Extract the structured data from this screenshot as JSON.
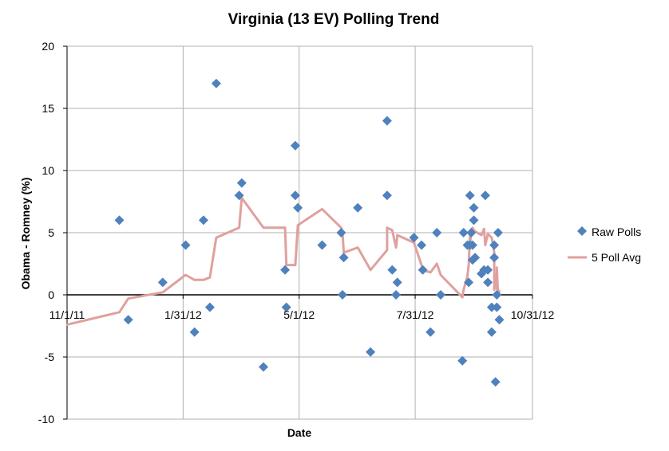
{
  "chart_data": {
    "type": "scatter",
    "title": "Virginia (13 EV) Polling Trend",
    "xlabel": "Date",
    "ylabel": "Obama - Romney (%)",
    "x_ticks": [
      "11/1/11",
      "1/31/12",
      "5/1/12",
      "7/31/12",
      "10/31/12"
    ],
    "xlim": [
      "2011-11-01",
      "2012-10-31"
    ],
    "y_ticks": [
      "-10",
      "-5",
      "0",
      "5",
      "10",
      "15",
      "20"
    ],
    "ylim": [
      -10,
      20
    ],
    "grid": true,
    "legend_position": "right",
    "colors": {
      "raw": "#4f81bd",
      "avg": "#e0a09e",
      "grid": "#b0b0b0",
      "axis": "#000000"
    },
    "series": [
      {
        "name": "Raw Polls",
        "type": "scatter",
        "points": [
          [
            "2011-12-12",
            6
          ],
          [
            "2011-12-19",
            -2
          ],
          [
            "2012-01-15",
            1
          ],
          [
            "2012-02-02",
            4
          ],
          [
            "2012-02-09",
            -3
          ],
          [
            "2012-02-16",
            6
          ],
          [
            "2012-02-21",
            -1
          ],
          [
            "2012-02-26",
            17
          ],
          [
            "2012-03-15",
            8
          ],
          [
            "2012-03-17",
            9
          ],
          [
            "2012-04-03",
            -5.8
          ],
          [
            "2012-04-20",
            2
          ],
          [
            "2012-04-21",
            -1
          ],
          [
            "2012-04-28",
            12
          ],
          [
            "2012-04-28",
            8
          ],
          [
            "2012-04-30",
            7
          ],
          [
            "2012-05-19",
            4
          ],
          [
            "2012-06-03",
            5
          ],
          [
            "2012-06-04",
            0
          ],
          [
            "2012-06-05",
            3
          ],
          [
            "2012-06-16",
            7
          ],
          [
            "2012-06-26",
            -4.6
          ],
          [
            "2012-07-09",
            14
          ],
          [
            "2012-07-09",
            8
          ],
          [
            "2012-07-13",
            2
          ],
          [
            "2012-07-16",
            0
          ],
          [
            "2012-07-17",
            1
          ],
          [
            "2012-07-30",
            4.6
          ],
          [
            "2012-08-05",
            4
          ],
          [
            "2012-08-06",
            2
          ],
          [
            "2012-08-12",
            -3
          ],
          [
            "2012-08-17",
            5
          ],
          [
            "2012-08-20",
            0
          ],
          [
            "2012-09-06",
            -5.3
          ],
          [
            "2012-09-07",
            5
          ],
          [
            "2012-09-10",
            4
          ],
          [
            "2012-09-11",
            1
          ],
          [
            "2012-09-12",
            8
          ],
          [
            "2012-09-12",
            4
          ],
          [
            "2012-09-13",
            5
          ],
          [
            "2012-09-14",
            2.8
          ],
          [
            "2012-09-14",
            4
          ],
          [
            "2012-09-15",
            7
          ],
          [
            "2012-09-15",
            6
          ],
          [
            "2012-09-16",
            3
          ],
          [
            "2012-09-21",
            1.7
          ],
          [
            "2012-09-23",
            2
          ],
          [
            "2012-09-24",
            8
          ],
          [
            "2012-09-26",
            2
          ],
          [
            "2012-09-26",
            1
          ],
          [
            "2012-09-29",
            -1
          ],
          [
            "2012-09-29",
            -3
          ],
          [
            "2012-10-01",
            4
          ],
          [
            "2012-10-01",
            3
          ],
          [
            "2012-10-02",
            -7
          ],
          [
            "2012-10-03",
            0
          ],
          [
            "2012-10-03",
            -1
          ],
          [
            "2012-10-04",
            5
          ],
          [
            "2012-10-05",
            -2
          ]
        ]
      },
      {
        "name": "5 Poll Avg",
        "type": "line",
        "points": [
          [
            "2011-11-01",
            -2.4
          ],
          [
            "2011-12-12",
            -1.4
          ],
          [
            "2011-12-19",
            -0.3
          ],
          [
            "2012-01-15",
            0.2
          ],
          [
            "2012-02-02",
            1.6
          ],
          [
            "2012-02-09",
            1.2
          ],
          [
            "2012-02-16",
            1.2
          ],
          [
            "2012-02-21",
            1.4
          ],
          [
            "2012-02-26",
            4.6
          ],
          [
            "2012-03-15",
            5.4
          ],
          [
            "2012-03-17",
            7.8
          ],
          [
            "2012-04-03",
            5.4
          ],
          [
            "2012-04-20",
            5.4
          ],
          [
            "2012-04-21",
            2.4
          ],
          [
            "2012-04-28",
            2.4
          ],
          [
            "2012-04-28",
            2.4
          ],
          [
            "2012-04-30",
            5.6
          ],
          [
            "2012-05-19",
            6.9
          ],
          [
            "2012-06-03",
            5.4
          ],
          [
            "2012-06-04",
            5.0
          ],
          [
            "2012-06-05",
            3.4
          ],
          [
            "2012-06-16",
            3.8
          ],
          [
            "2012-06-26",
            2.0
          ],
          [
            "2012-07-09",
            3.6
          ],
          [
            "2012-07-09",
            5.4
          ],
          [
            "2012-07-13",
            5.2
          ],
          [
            "2012-07-16",
            3.8
          ],
          [
            "2012-07-17",
            4.8
          ],
          [
            "2012-07-30",
            4.2
          ],
          [
            "2012-08-05",
            2.4
          ],
          [
            "2012-08-06",
            2.0
          ],
          [
            "2012-08-12",
            1.8
          ],
          [
            "2012-08-17",
            2.5
          ],
          [
            "2012-08-20",
            1.6
          ],
          [
            "2012-09-06",
            -0.2
          ],
          [
            "2012-09-07",
            0.4
          ],
          [
            "2012-09-10",
            1.5
          ],
          [
            "2012-09-11",
            2.4
          ],
          [
            "2012-09-12",
            4.8
          ],
          [
            "2012-09-12",
            4.0
          ],
          [
            "2012-09-13",
            5.2
          ],
          [
            "2012-09-14",
            5.4
          ],
          [
            "2012-09-15",
            5.2
          ],
          [
            "2012-09-16",
            5.1
          ],
          [
            "2012-09-21",
            4.8
          ],
          [
            "2012-09-23",
            5.3
          ],
          [
            "2012-09-24",
            4.0
          ],
          [
            "2012-09-26",
            4.9
          ],
          [
            "2012-09-29",
            4.6
          ],
          [
            "2012-10-01",
            3.4
          ],
          [
            "2012-10-01",
            0.4
          ],
          [
            "2012-10-02",
            1.6
          ],
          [
            "2012-10-03",
            0.5
          ],
          [
            "2012-10-03",
            2.2
          ],
          [
            "2012-10-04",
            -0.1
          ],
          [
            "2012-10-05",
            0.3
          ]
        ]
      }
    ]
  }
}
